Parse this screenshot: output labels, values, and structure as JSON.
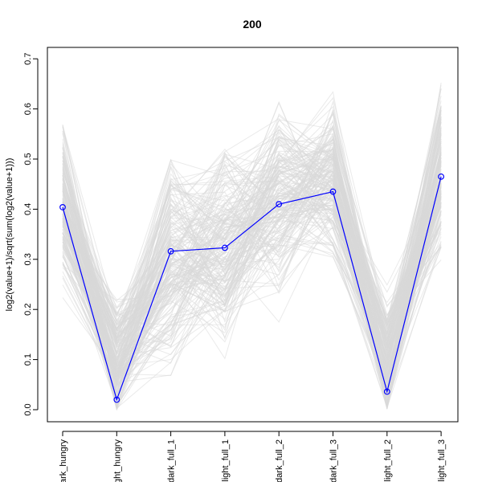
{
  "chart_data": {
    "type": "line",
    "title": "200",
    "xlabel": "",
    "ylabel": "log2(value+1)/sqrt(sum(log2(value+1)))",
    "categories": [
      "dark_hungry",
      "light_hungry",
      "dark_full_1",
      "light_full_1",
      "dark_full_2",
      "dark_full_3",
      "light_full_2",
      "light_full_3"
    ],
    "ylim": [
      0,
      0.7
    ],
    "y_ticks": [
      0.0,
      0.1,
      0.2,
      0.3,
      0.4,
      0.5,
      0.6,
      0.7
    ],
    "y_tick_labels": [
      "0.0",
      "0.1",
      "0.2",
      "0.3",
      "0.4",
      "0.5",
      "0.6",
      "0.7"
    ],
    "grid": false,
    "highlight_series": {
      "values": [
        0.404,
        0.02,
        0.316,
        0.323,
        0.41,
        0.435,
        0.036,
        0.465
      ],
      "color": "#0000ff",
      "marker": "open-circle"
    },
    "background_series": {
      "color": "#d9d9d9",
      "count": 200,
      "per_category_center": [
        0.4,
        0.1,
        0.3,
        0.32,
        0.42,
        0.46,
        0.1,
        0.48
      ],
      "per_category_range": [
        [
          0.2,
          0.57
        ],
        [
          0.0,
          0.3
        ],
        [
          0.0,
          0.5
        ],
        [
          0.0,
          0.52
        ],
        [
          0.15,
          0.62
        ],
        [
          0.28,
          0.67
        ],
        [
          0.0,
          0.32
        ],
        [
          0.28,
          0.69
        ]
      ]
    }
  }
}
